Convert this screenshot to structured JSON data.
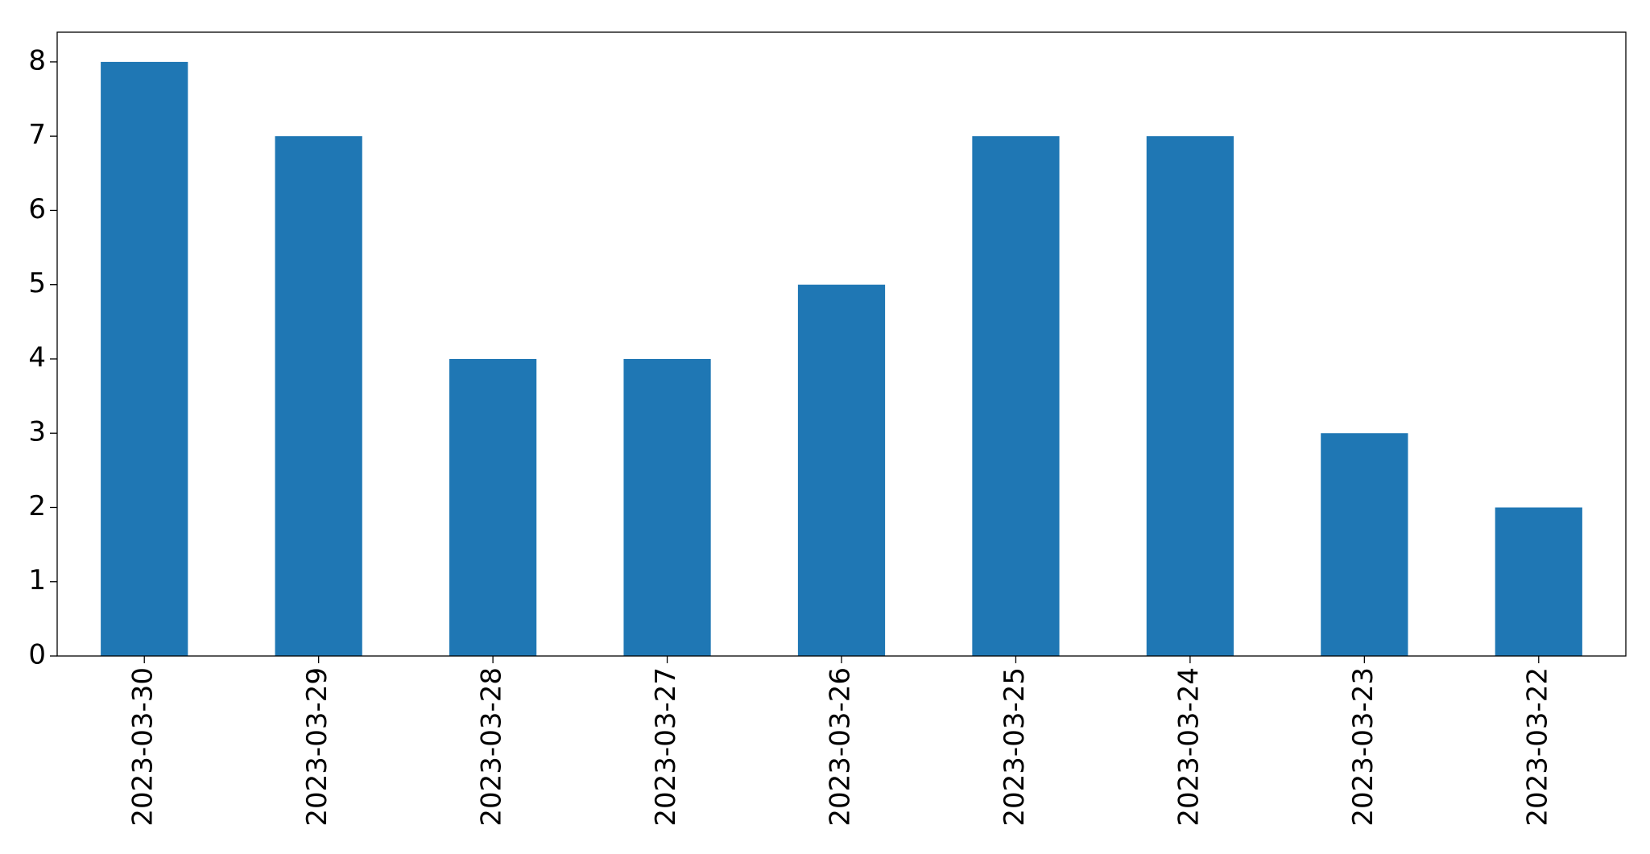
{
  "chart_data": {
    "type": "bar",
    "categories": [
      "2023-03-30",
      "2023-03-29",
      "2023-03-28",
      "2023-03-27",
      "2023-03-26",
      "2023-03-25",
      "2023-03-24",
      "2023-03-23",
      "2023-03-22"
    ],
    "values": [
      8,
      7,
      4,
      4,
      5,
      7,
      7,
      3,
      2
    ],
    "color": "#1f77b4",
    "ylim": [
      0,
      8.4
    ],
    "yticks": [
      0,
      1,
      2,
      3,
      4,
      5,
      6,
      7,
      8
    ],
    "grid": false
  }
}
